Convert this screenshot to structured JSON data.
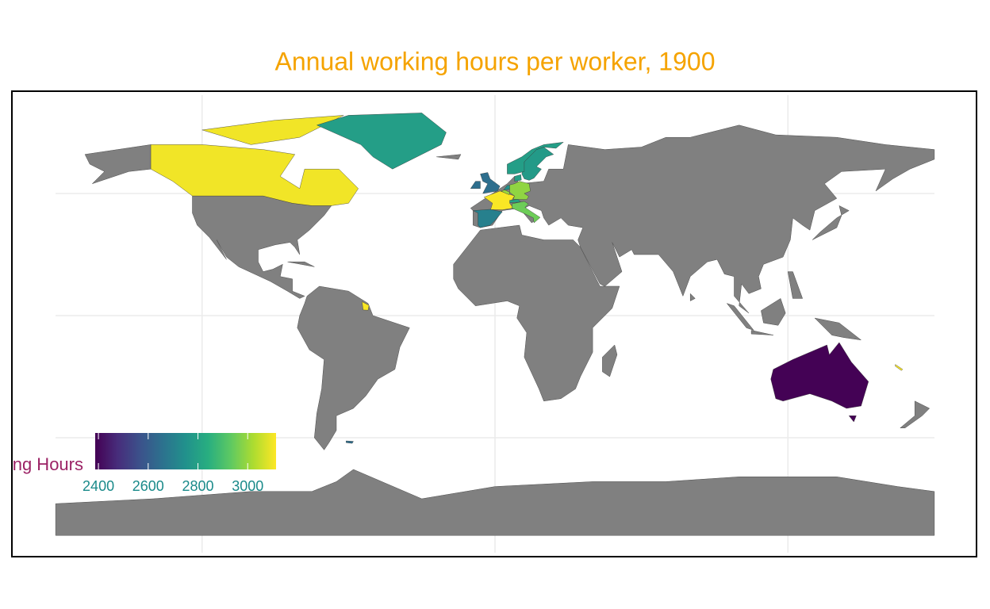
{
  "chart_data": {
    "type": "choropleth",
    "title": "Annual working hours per worker, 1900",
    "legend_title": "ng Hours",
    "values": [
      2390,
      3100,
      2790,
      3110,
      2650,
      2700,
      3110,
      3000,
      2750,
      2990,
      2800,
      2950,
      2790,
      2780,
      2790,
      3110,
      2650
    ],
    "clim": [
      2387,
      3114
    ],
    "colorbar_ticks": [
      2400,
      2600,
      2800,
      3000
    ],
    "colormap": [
      "#440154",
      "#472d7b",
      "#3b528b",
      "#2c728e",
      "#21918c",
      "#28ae80",
      "#5ec962",
      "#addc30",
      "#fde725"
    ],
    "missing_color": "#808080",
    "grid": true
  }
}
